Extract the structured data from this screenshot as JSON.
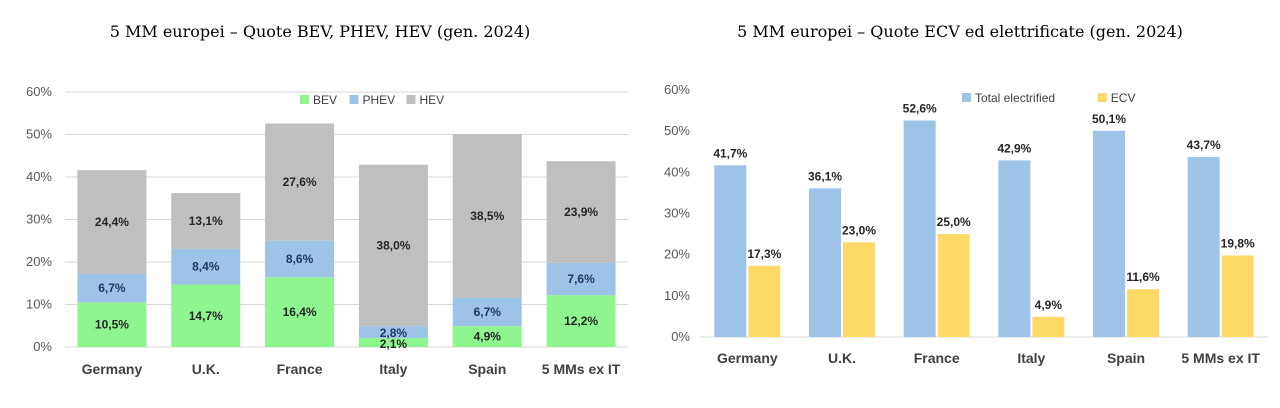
{
  "chart_data": [
    {
      "type": "bar",
      "stacked": true,
      "title": "5 MM europei – Quote BEV, PHEV, HEV (gen. 2024)",
      "categories": [
        "Germany",
        "U.K.",
        "France",
        "Italy",
        "Spain",
        "5 MMs ex IT"
      ],
      "series": [
        {
          "name": "BEV",
          "color": "#8ff58f",
          "values": [
            10.5,
            14.7,
            16.4,
            2.1,
            4.9,
            12.2
          ],
          "labels": [
            "10,5%",
            "14,7%",
            "16,4%",
            "2,1%",
            "4,9%",
            "12,2%"
          ]
        },
        {
          "name": "PHEV",
          "color": "#9dc3e6",
          "values": [
            6.7,
            8.4,
            8.6,
            2.8,
            6.7,
            7.6
          ],
          "labels": [
            "6,7%",
            "8,4%",
            "8,6%",
            "2,8%",
            "6,7%",
            "7,6%"
          ]
        },
        {
          "name": "HEV",
          "color": "#bfbfbf",
          "values": [
            24.4,
            13.1,
            27.6,
            38.0,
            38.5,
            23.9
          ],
          "labels": [
            "24,4%",
            "13,1%",
            "27,6%",
            "38,0%",
            "38,5%",
            "23,9%"
          ]
        }
      ],
      "ylim": [
        0,
        60
      ],
      "yticks": [
        "0%",
        "10%",
        "20%",
        "30%",
        "40%",
        "50%",
        "60%"
      ],
      "grid": true,
      "legend": "top-center"
    },
    {
      "type": "bar",
      "stacked": false,
      "title": "5 MM europei – Quote ECV ed elettrificate (gen. 2024)",
      "categories": [
        "Germany",
        "U.K.",
        "France",
        "Italy",
        "Spain",
        "5 MMs ex IT"
      ],
      "series": [
        {
          "name": "Total electrified",
          "color": "#9dc3e6",
          "values": [
            41.7,
            36.1,
            52.6,
            42.9,
            50.1,
            43.7
          ],
          "labels": [
            "41,7%",
            "36,1%",
            "52,6%",
            "42,9%",
            "50,1%",
            "43,7%"
          ]
        },
        {
          "name": "ECV",
          "color": "#ffd966",
          "values": [
            17.3,
            23.0,
            25.0,
            4.9,
            11.6,
            19.8
          ],
          "labels": [
            "17,3%",
            "23,0%",
            "25,0%",
            "4,9%",
            "11,6%",
            "19,8%"
          ]
        }
      ],
      "ylim": [
        0,
        60
      ],
      "yticks": [
        "0%",
        "10%",
        "20%",
        "30%",
        "40%",
        "50%",
        "60%"
      ],
      "grid": true,
      "legend": "top-left"
    }
  ]
}
